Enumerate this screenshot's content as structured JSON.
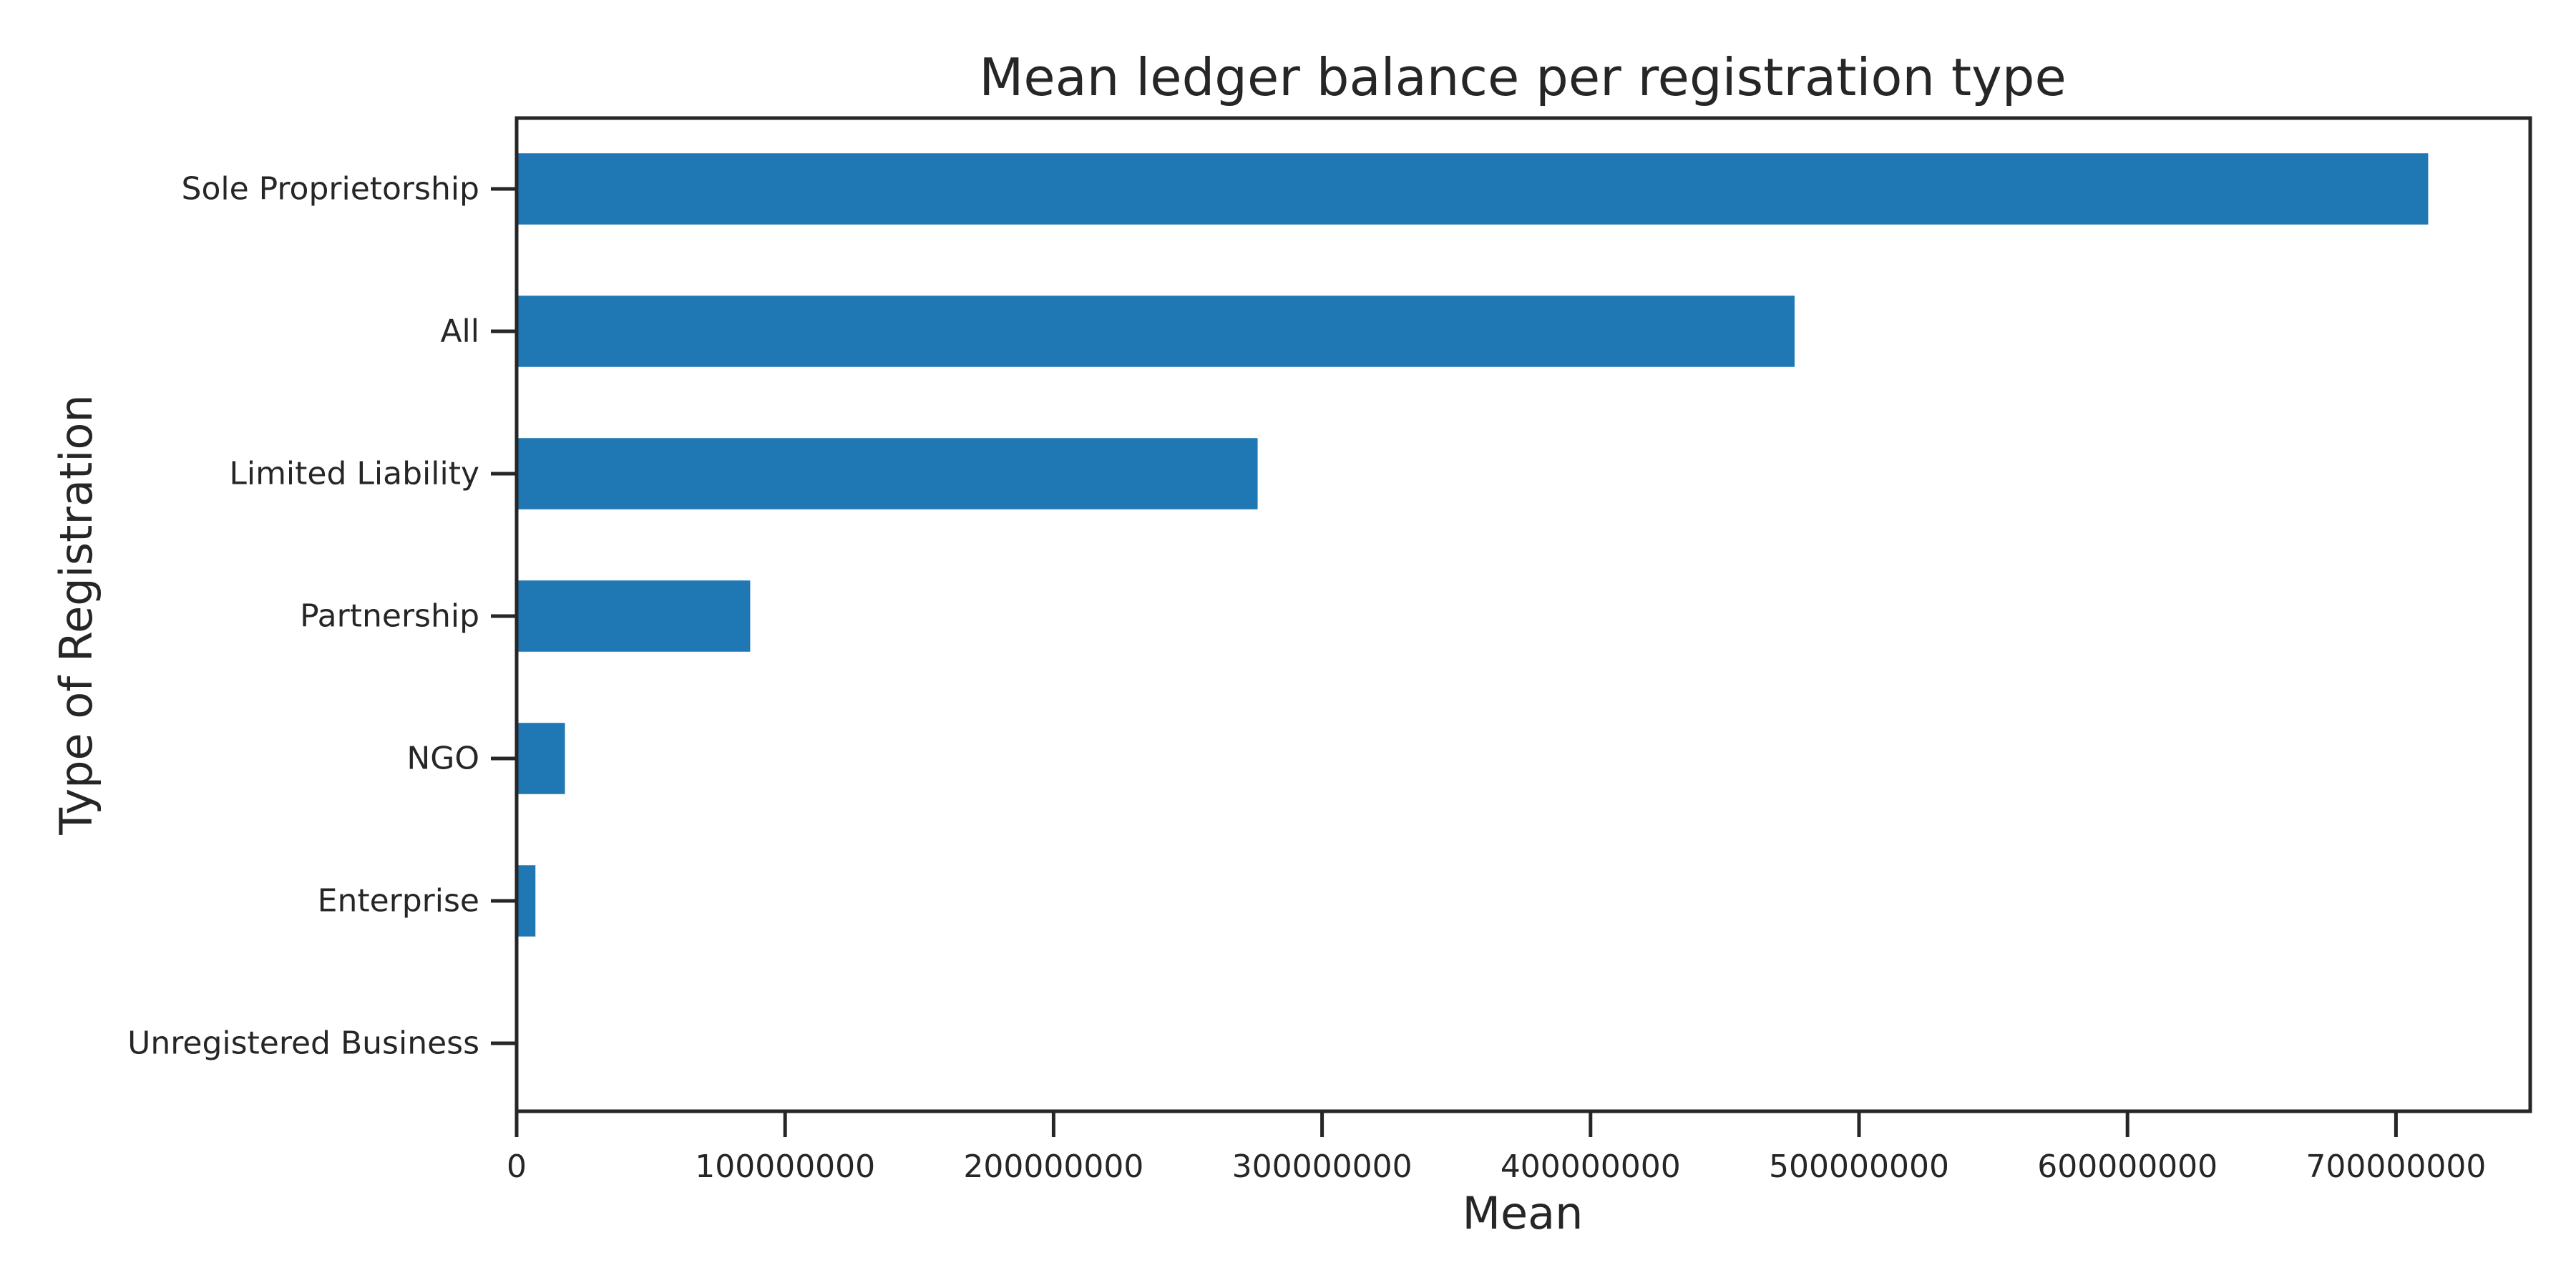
{
  "chart_data": {
    "type": "bar",
    "orientation": "horizontal",
    "title": "Mean ledger balance per registration type",
    "xlabel": "Mean",
    "ylabel": "Type of Registration",
    "categories": [
      "Sole Proprietorship",
      "All",
      "Limited Liability",
      "Partnership",
      "NGO",
      "Enterprise",
      "Unregistered Business"
    ],
    "values": [
      712000000,
      476000000,
      276000000,
      87000000,
      18000000,
      7000000,
      0
    ],
    "xlim": [
      0,
      750000000
    ],
    "xticks": [
      0,
      100000000,
      200000000,
      300000000,
      400000000,
      500000000,
      600000000,
      700000000
    ],
    "xtick_labels": [
      "0",
      "100000000",
      "200000000",
      "300000000",
      "400000000",
      "500000000",
      "600000000",
      "700000000"
    ],
    "bar_color": "#1f77b4",
    "axis_color": "#262626",
    "grid": false,
    "legend": "none"
  }
}
